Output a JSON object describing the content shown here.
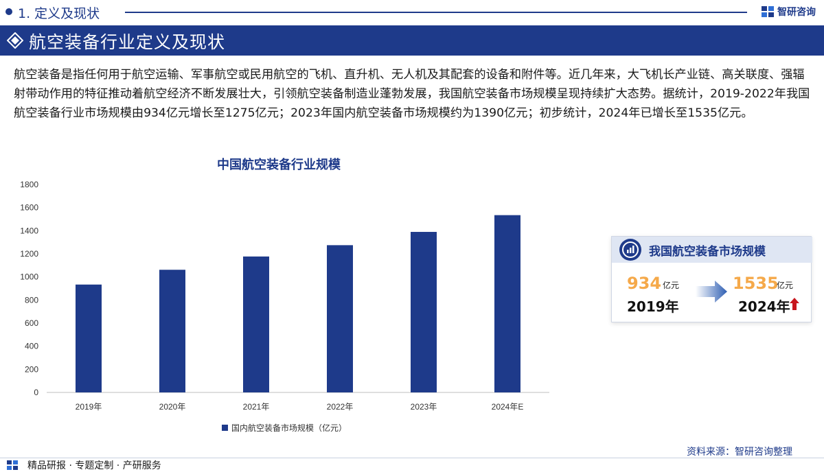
{
  "section": {
    "label": "1. 定义及现状",
    "brand": "智研咨询"
  },
  "banner": {
    "title": "航空装备行业定义及现状"
  },
  "intro": "航空装备是指任何用于航空运输、军事航空或民用航空的飞机、直升机、无人机及其配套的设备和附件等。近几年来，大飞机长产业链、高关联度、强辐射带动作用的特征推动着航空经济不断发展壮大，引领航空装备制造业蓬勃发展，我国航空装备市场规模呈现持续扩大态势。据统计，2019-2022年我国航空装备行业市场规模由934亿元增长至1275亿元；2023年国内航空装备市场规模约为1390亿元；初步统计，2024年已增长至1535亿元。",
  "chart_data": {
    "type": "bar",
    "title": "中国航空装备行业规模",
    "categories": [
      "2019年",
      "2020年",
      "2021年",
      "2022年",
      "2023年",
      "2024年E"
    ],
    "series": [
      {
        "name": "国内航空装备市场规模（亿元）",
        "values": [
          934,
          1062,
          1177,
          1275,
          1390,
          1535
        ]
      }
    ],
    "ylim": [
      0,
      1800
    ],
    "yticks": [
      "0",
      "200",
      "400",
      "600",
      "800",
      "1000",
      "1200",
      "1400",
      "1600",
      "1800"
    ],
    "legend": "bottom",
    "grid": false,
    "color": "#1e3a8a"
  },
  "card": {
    "title": "我国航空装备市场规模",
    "start_value": "934",
    "start_unit": "亿元",
    "start_year": "2019年",
    "end_value": "1535",
    "end_unit": "亿元",
    "end_year": "2024年"
  },
  "footer": {
    "source": "资料来源：智研咨询整理",
    "tagline": "精品研报 · 专题定制 · 产研服务"
  },
  "colors": {
    "primary": "#1e3a8a",
    "accent": "#f5a94a",
    "up_arrow": "#c8161d"
  }
}
